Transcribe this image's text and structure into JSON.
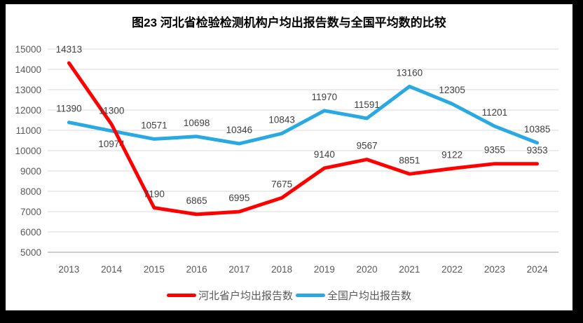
{
  "chart": {
    "title": "图23  河北省检验检测机构户均出报告数与全国平均数的比较",
    "colors": {
      "hebei_series": "#FF0000",
      "national_series": "#29A9E1",
      "gridline": "#D9D9D9",
      "axis_line": "#BFBFBF",
      "data_label_text": "#404040",
      "axis_text": "#595959",
      "title_text": "#000000",
      "frame": "#000000",
      "background": "#FFFFFF"
    }
  },
  "chart_data": {
    "type": "line",
    "title": "图23  河北省检验检测机构户均出报告数与全国平均数的比较",
    "categories": [
      "2013",
      "2014",
      "2015",
      "2016",
      "2017",
      "2018",
      "2019",
      "2020",
      "2021",
      "2022",
      "2023",
      "2024"
    ],
    "series": [
      {
        "name": "全国户均出报告数",
        "color_key": "national_series",
        "values": [
          11390,
          10974,
          10571,
          10698,
          10346,
          10843,
          11970,
          11591,
          13160,
          12305,
          11201,
          10385
        ],
        "labels_below_indices": [
          1
        ]
      },
      {
        "name": "河北省户均出报告数",
        "color_key": "hebei_series",
        "values": [
          14313,
          11300,
          7190,
          6865,
          6995,
          7675,
          9140,
          9567,
          8851,
          9122,
          9355,
          9353
        ],
        "labels_below_indices": []
      }
    ],
    "xlabel": "",
    "ylabel": "",
    "ylim": [
      5000,
      15000
    ],
    "ytick_step": 1000,
    "yticks": [
      5000,
      6000,
      7000,
      8000,
      9000,
      10000,
      11000,
      12000,
      13000,
      14000,
      15000
    ],
    "grid": true,
    "data_labels": true,
    "legend_position": "bottom"
  },
  "legend": {
    "items": [
      {
        "label": "河北省户均出报告数",
        "color": "#FF0000"
      },
      {
        "label": "全国户均出报告数",
        "color": "#29A9E1"
      }
    ]
  }
}
